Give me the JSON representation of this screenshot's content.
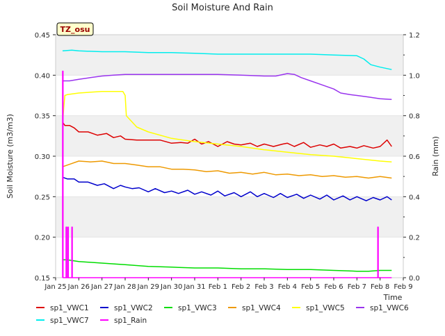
{
  "chart_data": {
    "type": "line",
    "title": "Soil Moisture And Rain",
    "xlabel": "Time",
    "ylabel_left": "Soil Moisture (m3/m3)",
    "ylabel_right": "Rain (mm)",
    "annotation": "TZ_osu",
    "xlim": [
      0,
      15
    ],
    "ylim_left": [
      0.15,
      0.45
    ],
    "ylim_right": [
      0.0,
      1.2
    ],
    "x_ticks": [
      {
        "value": 0,
        "label": "Jan 25"
      },
      {
        "value": 1,
        "label": "Jan 26"
      },
      {
        "value": 2,
        "label": "Jan 27"
      },
      {
        "value": 3,
        "label": "Jan 28"
      },
      {
        "value": 4,
        "label": "Jan 29"
      },
      {
        "value": 5,
        "label": "Jan 30"
      },
      {
        "value": 6,
        "label": "Jan 31"
      },
      {
        "value": 7,
        "label": "Feb 1"
      },
      {
        "value": 8,
        "label": "Feb 2"
      },
      {
        "value": 9,
        "label": "Feb 3"
      },
      {
        "value": 10,
        "label": "Feb 4"
      },
      {
        "value": 11,
        "label": "Feb 5"
      },
      {
        "value": 12,
        "label": "Feb 6"
      },
      {
        "value": 13,
        "label": "Feb 7"
      },
      {
        "value": 14,
        "label": "Feb 8"
      },
      {
        "value": 15,
        "label": "Feb 9"
      }
    ],
    "y_ticks_left": [
      {
        "value": 0.15,
        "label": "0.15"
      },
      {
        "value": 0.2,
        "label": "0.20"
      },
      {
        "value": 0.25,
        "label": "0.25"
      },
      {
        "value": 0.3,
        "label": "0.30"
      },
      {
        "value": 0.35,
        "label": "0.35"
      },
      {
        "value": 0.4,
        "label": "0.40"
      },
      {
        "value": 0.45,
        "label": "0.45"
      }
    ],
    "y_ticks_right": [
      {
        "value": 0.0,
        "label": "0.0"
      },
      {
        "value": 0.2,
        "label": "0.2"
      },
      {
        "value": 0.4,
        "label": "0.4"
      },
      {
        "value": 0.6,
        "label": "0.6"
      },
      {
        "value": 0.8,
        "label": "0.8"
      },
      {
        "value": 1.0,
        "label": "1.0"
      },
      {
        "value": 1.2,
        "label": "1.2"
      }
    ],
    "grid": true,
    "legend_position": "bottom",
    "series": [
      {
        "name": "sp1_VWC1",
        "color": "#dd0000",
        "axis": "left",
        "x": [
          0.3,
          0.4,
          0.6,
          0.8,
          1.0,
          1.4,
          1.8,
          2.2,
          2.5,
          2.8,
          3.0,
          3.5,
          4.0,
          4.5,
          5.0,
          5.4,
          5.7,
          6.0,
          6.3,
          6.6,
          7.0,
          7.4,
          7.7,
          8.0,
          8.4,
          8.7,
          9.0,
          9.4,
          9.8,
          10.0,
          10.3,
          10.7,
          11.0,
          11.4,
          11.7,
          12.0,
          12.3,
          12.7,
          13.0,
          13.3,
          13.7,
          14.0,
          14.3,
          14.5
        ],
        "y": [
          0.342,
          0.338,
          0.338,
          0.335,
          0.33,
          0.33,
          0.326,
          0.328,
          0.323,
          0.325,
          0.321,
          0.32,
          0.32,
          0.32,
          0.316,
          0.317,
          0.316,
          0.321,
          0.315,
          0.318,
          0.312,
          0.318,
          0.315,
          0.314,
          0.316,
          0.312,
          0.315,
          0.312,
          0.315,
          0.316,
          0.312,
          0.317,
          0.311,
          0.314,
          0.312,
          0.315,
          0.31,
          0.312,
          0.31,
          0.313,
          0.31,
          0.312,
          0.32,
          0.312
        ]
      },
      {
        "name": "sp1_VWC2",
        "color": "#0000cc",
        "axis": "left",
        "x": [
          0.3,
          0.5,
          0.8,
          1.0,
          1.4,
          1.8,
          2.1,
          2.5,
          2.8,
          3.0,
          3.3,
          3.6,
          4.0,
          4.3,
          4.7,
          5.0,
          5.3,
          5.7,
          6.0,
          6.3,
          6.7,
          7.0,
          7.3,
          7.7,
          8.0,
          8.4,
          8.7,
          9.0,
          9.4,
          9.7,
          10.0,
          10.4,
          10.7,
          11.0,
          11.4,
          11.7,
          12.0,
          12.4,
          12.7,
          13.0,
          13.4,
          13.7,
          14.0,
          14.3,
          14.5
        ],
        "y": [
          0.274,
          0.272,
          0.272,
          0.268,
          0.268,
          0.264,
          0.266,
          0.26,
          0.264,
          0.262,
          0.26,
          0.261,
          0.256,
          0.26,
          0.255,
          0.257,
          0.254,
          0.258,
          0.253,
          0.256,
          0.252,
          0.257,
          0.251,
          0.255,
          0.25,
          0.256,
          0.25,
          0.254,
          0.249,
          0.254,
          0.249,
          0.253,
          0.248,
          0.252,
          0.247,
          0.252,
          0.246,
          0.251,
          0.246,
          0.25,
          0.245,
          0.249,
          0.246,
          0.25,
          0.246
        ]
      },
      {
        "name": "sp1_VWC3",
        "color": "#00dd00",
        "axis": "left",
        "x": [
          0.3,
          0.5,
          1.0,
          2.0,
          3.0,
          4.0,
          5.0,
          6.0,
          7.0,
          8.0,
          9.0,
          10.0,
          11.0,
          12.0,
          13.0,
          13.5,
          14.0,
          14.5
        ],
        "y": [
          0.172,
          0.172,
          0.17,
          0.168,
          0.166,
          0.164,
          0.163,
          0.162,
          0.162,
          0.161,
          0.161,
          0.16,
          0.16,
          0.159,
          0.158,
          0.158,
          0.159,
          0.159
        ]
      },
      {
        "name": "sp1_VWC4",
        "color": "#ee9900",
        "axis": "left",
        "x": [
          0.3,
          0.6,
          1.0,
          1.5,
          2.0,
          2.5,
          3.0,
          3.5,
          4.0,
          4.5,
          5.0,
          5.5,
          6.0,
          6.5,
          7.0,
          7.5,
          8.0,
          8.5,
          9.0,
          9.5,
          10.0,
          10.5,
          11.0,
          11.5,
          12.0,
          12.5,
          13.0,
          13.5,
          14.0,
          14.5
        ],
        "y": [
          0.287,
          0.29,
          0.294,
          0.293,
          0.294,
          0.291,
          0.291,
          0.289,
          0.287,
          0.287,
          0.284,
          0.284,
          0.283,
          0.281,
          0.282,
          0.279,
          0.28,
          0.278,
          0.28,
          0.277,
          0.278,
          0.276,
          0.277,
          0.275,
          0.276,
          0.274,
          0.275,
          0.273,
          0.275,
          0.273
        ]
      },
      {
        "name": "sp1_VWC5",
        "color": "#ffff00",
        "axis": "left",
        "x": [
          0.3,
          0.35,
          0.4,
          0.5,
          1.0,
          2.0,
          2.9,
          3.0,
          3.05,
          3.5,
          4.0,
          5.0,
          6.0,
          7.0,
          8.0,
          9.0,
          10.0,
          11.0,
          12.0,
          13.0,
          14.0,
          14.5
        ],
        "y": [
          0.34,
          0.36,
          0.375,
          0.376,
          0.378,
          0.38,
          0.38,
          0.375,
          0.35,
          0.336,
          0.33,
          0.322,
          0.318,
          0.315,
          0.312,
          0.308,
          0.305,
          0.302,
          0.3,
          0.297,
          0.294,
          0.293
        ]
      },
      {
        "name": "sp1_VWC6",
        "color": "#9933ee",
        "axis": "left",
        "x": [
          0.3,
          0.6,
          1.0,
          1.5,
          2.0,
          2.5,
          3.0,
          4.0,
          5.0,
          6.0,
          7.0,
          8.0,
          9.0,
          9.5,
          10.0,
          10.3,
          10.6,
          11.0,
          11.5,
          12.0,
          12.3,
          12.7,
          13.0,
          13.5,
          14.0,
          14.5
        ],
        "y": [
          0.393,
          0.393,
          0.395,
          0.397,
          0.399,
          0.4,
          0.401,
          0.401,
          0.401,
          0.401,
          0.401,
          0.4,
          0.399,
          0.399,
          0.402,
          0.401,
          0.397,
          0.393,
          0.388,
          0.383,
          0.378,
          0.376,
          0.375,
          0.373,
          0.371,
          0.37
        ]
      },
      {
        "name": "sp1_VWC7",
        "color": "#00eeee",
        "axis": "left",
        "x": [
          0.3,
          0.7,
          1.0,
          2.0,
          3.0,
          4.0,
          5.0,
          6.0,
          7.0,
          8.0,
          9.0,
          10.0,
          11.0,
          12.0,
          13.0,
          13.3,
          13.6,
          14.0,
          14.5
        ],
        "y": [
          0.43,
          0.431,
          0.43,
          0.429,
          0.429,
          0.428,
          0.428,
          0.427,
          0.426,
          0.426,
          0.426,
          0.426,
          0.426,
          0.425,
          0.424,
          0.42,
          0.413,
          0.41,
          0.407
        ]
      },
      {
        "name": "sp1_Rain",
        "color": "#ff00ff",
        "axis": "right",
        "x": [
          0.3,
          0.3,
          0.32,
          0.32,
          0.45,
          0.45,
          0.48,
          0.48,
          0.53,
          0.53,
          0.55,
          0.55,
          0.7,
          0.7,
          0.72,
          0.72,
          13.9,
          13.9,
          13.92,
          13.92,
          14.5
        ],
        "y": [
          0.0,
          1.02,
          1.02,
          0.0,
          0.0,
          0.25,
          0.25,
          0.0,
          0.0,
          0.25,
          0.25,
          0.0,
          0.0,
          0.25,
          0.25,
          0.0,
          0.0,
          0.25,
          0.25,
          0.0,
          0.0
        ]
      }
    ]
  }
}
